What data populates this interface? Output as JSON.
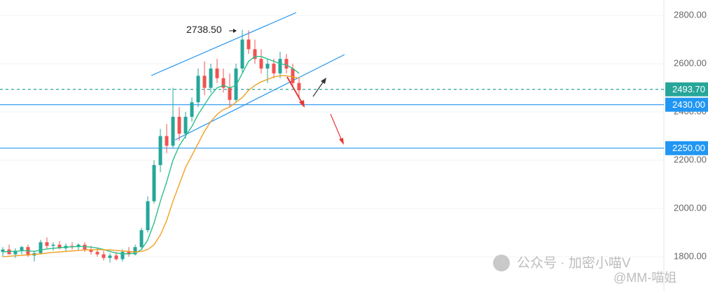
{
  "chart_data": {
    "type": "candlestick",
    "up_color": "#26a69a",
    "down_color": "#ef5350",
    "ylim": [
      1658,
      2864
    ],
    "yticks": [
      {
        "value": 1800,
        "label": "1800.00"
      },
      {
        "value": 2000,
        "label": "2000.00"
      },
      {
        "value": 2200,
        "label": "2200.00"
      },
      {
        "value": 2400,
        "label": "2400.00"
      },
      {
        "value": 2600,
        "label": "2600.00"
      },
      {
        "value": 2800,
        "label": "2800.00"
      }
    ],
    "candles": [
      [
        1820,
        1840,
        1800,
        1830
      ],
      [
        1830,
        1850,
        1815,
        1810
      ],
      [
        1810,
        1835,
        1795,
        1825
      ],
      [
        1825,
        1845,
        1810,
        1840
      ],
      [
        1840,
        1850,
        1800,
        1805
      ],
      [
        1805,
        1825,
        1780,
        1815
      ],
      [
        1815,
        1870,
        1810,
        1860
      ],
      [
        1860,
        1880,
        1835,
        1845
      ],
      [
        1845,
        1860,
        1825,
        1850
      ],
      [
        1850,
        1865,
        1830,
        1835
      ],
      [
        1835,
        1855,
        1820,
        1845
      ],
      [
        1845,
        1860,
        1830,
        1840
      ],
      [
        1840,
        1855,
        1825,
        1850
      ],
      [
        1850,
        1860,
        1820,
        1830
      ],
      [
        1830,
        1845,
        1810,
        1820
      ],
      [
        1820,
        1835,
        1800,
        1810
      ],
      [
        1810,
        1825,
        1785,
        1795
      ],
      [
        1795,
        1815,
        1775,
        1805
      ],
      [
        1805,
        1820,
        1785,
        1790
      ],
      [
        1790,
        1830,
        1780,
        1820
      ],
      [
        1820,
        1840,
        1800,
        1810
      ],
      [
        1810,
        1850,
        1805,
        1840
      ],
      [
        1840,
        1920,
        1835,
        1910
      ],
      [
        1910,
        2050,
        1900,
        2030
      ],
      [
        2030,
        2200,
        2020,
        2180
      ],
      [
        2180,
        2330,
        2150,
        2300
      ],
      [
        2300,
        2350,
        2230,
        2260
      ],
      [
        2260,
        2500,
        2250,
        2380
      ],
      [
        2380,
        2420,
        2280,
        2310
      ],
      [
        2310,
        2400,
        2290,
        2380
      ],
      [
        2380,
        2460,
        2360,
        2440
      ],
      [
        2440,
        2580,
        2420,
        2550
      ],
      [
        2550,
        2610,
        2470,
        2500
      ],
      [
        2500,
        2600,
        2480,
        2580
      ],
      [
        2580,
        2620,
        2520,
        2540
      ],
      [
        2540,
        2580,
        2480,
        2500
      ],
      [
        2500,
        2560,
        2420,
        2450
      ],
      [
        2450,
        2600,
        2440,
        2580
      ],
      [
        2580,
        2740,
        2560,
        2700
      ],
      [
        2700,
        2738.5,
        2640,
        2660
      ],
      [
        2660,
        2700,
        2600,
        2620
      ],
      [
        2620,
        2660,
        2560,
        2580
      ],
      [
        2580,
        2620,
        2520,
        2600
      ],
      [
        2600,
        2620,
        2540,
        2560
      ],
      [
        2560,
        2650,
        2540,
        2620
      ],
      [
        2620,
        2640,
        2560,
        2580
      ],
      [
        2580,
        2600,
        2500,
        2520
      ],
      [
        2520,
        2540,
        2460,
        2490
      ]
    ],
    "series": [
      {
        "color": "#2bbf8a",
        "values": [
          1820,
          1822,
          1822,
          1825,
          1825,
          1822,
          1828,
          1832,
          1835,
          1837,
          1840,
          1841,
          1843,
          1842,
          1840,
          1836,
          1830,
          1822,
          1815,
          1812,
          1812,
          1815,
          1830,
          1870,
          1940,
          2030,
          2110,
          2200,
          2260,
          2300,
          2340,
          2390,
          2430,
          2470,
          2500,
          2510,
          2500,
          2510,
          2560,
          2610,
          2630,
          2630,
          2620,
          2610,
          2600,
          2595,
          2580,
          2560
        ]
      },
      {
        "color": "#f0a020",
        "values": [
          1800,
          1802,
          1804,
          1806,
          1808,
          1810,
          1812,
          1815,
          1818,
          1820,
          1822,
          1824,
          1826,
          1828,
          1829,
          1830,
          1829,
          1828,
          1826,
          1824,
          1822,
          1820,
          1822,
          1830,
          1850,
          1890,
          1950,
          2030,
          2100,
          2170,
          2220,
          2270,
          2320,
          2360,
          2390,
          2410,
          2420,
          2440,
          2460,
          2490,
          2510,
          2525,
          2535,
          2545,
          2550,
          2550,
          2545,
          2540
        ]
      }
    ],
    "levels": [
      {
        "value": 2493.7,
        "label": "2493.70",
        "color": "#26a69a",
        "dashed": true
      },
      {
        "value": 2430,
        "label": "2430.00",
        "color": "#2196f3",
        "dashed": false
      },
      {
        "value": 2250,
        "label": "2250.00",
        "color": "#2196f3",
        "dashed": false
      }
    ],
    "annotation": {
      "value": 2738.5,
      "label": "2738.50"
    },
    "watermark": [
      "公众号 · 加密小喵V",
      "@MM-喵姐"
    ]
  }
}
